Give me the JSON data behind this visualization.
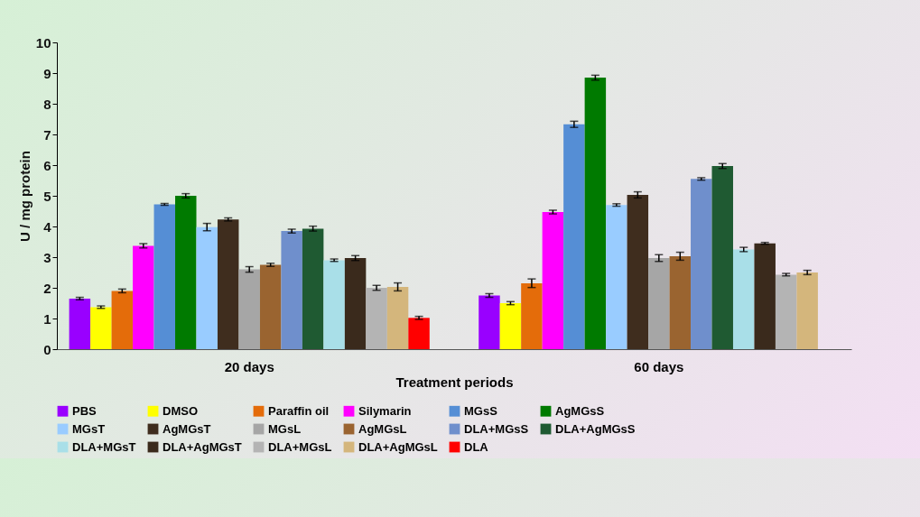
{
  "chart_data": {
    "type": "bar",
    "xlabel": "Treatment periods",
    "ylabel": "U / mg protein",
    "categories": [
      "20 days",
      "60 days"
    ],
    "ylim": [
      0,
      10
    ],
    "yticks": [
      0,
      1,
      2,
      3,
      4,
      5,
      6,
      7,
      8,
      9,
      10
    ],
    "grid": false,
    "legend": "bottom",
    "series": [
      {
        "name": "PBS",
        "color": "#9900ff",
        "values": [
          1.65,
          1.75
        ],
        "errors": [
          0.04,
          0.06
        ]
      },
      {
        "name": "DMSO",
        "color": "#ffff00",
        "values": [
          1.37,
          1.5
        ],
        "errors": [
          0.04,
          0.05
        ]
      },
      {
        "name": "Paraffin oil",
        "color": "#e46c0a",
        "values": [
          1.9,
          2.15
        ],
        "errors": [
          0.06,
          0.14
        ]
      },
      {
        "name": "Silymarin",
        "color": "#ff00ff",
        "values": [
          3.37,
          4.47
        ],
        "errors": [
          0.07,
          0.06
        ]
      },
      {
        "name": "MGsS",
        "color": "#558ed5",
        "values": [
          4.72,
          7.33
        ],
        "errors": [
          0.03,
          0.1
        ]
      },
      {
        "name": "AgMGsS",
        "color": "#007a00",
        "values": [
          5.0,
          8.85
        ],
        "errors": [
          0.07,
          0.08
        ]
      },
      {
        "name": "MGsT",
        "color": "#99ccff",
        "values": [
          3.98,
          4.7
        ],
        "errors": [
          0.12,
          0.04
        ]
      },
      {
        "name": "AgMGsT",
        "color": "#3f2d1e",
        "values": [
          4.23,
          5.03
        ],
        "errors": [
          0.05,
          0.1
        ]
      },
      {
        "name": "MGsL",
        "color": "#a6a6a6",
        "values": [
          2.6,
          2.97
        ],
        "errors": [
          0.09,
          0.11
        ]
      },
      {
        "name": "AgMGsL",
        "color": "#9a6430",
        "values": [
          2.75,
          3.03
        ],
        "errors": [
          0.05,
          0.13
        ]
      },
      {
        "name": "DLA+MGsS",
        "color": "#6f8fcc",
        "values": [
          3.85,
          5.55
        ],
        "errors": [
          0.06,
          0.04
        ]
      },
      {
        "name": "DLA+AgMGsS",
        "color": "#1f5a32",
        "values": [
          3.93,
          5.97
        ],
        "errors": [
          0.08,
          0.08
        ]
      },
      {
        "name": "DLA+MGsT",
        "color": "#a9dfe8",
        "values": [
          2.9,
          3.25
        ],
        "errors": [
          0.04,
          0.07
        ]
      },
      {
        "name": "DLA+AgMGsT",
        "color": "#3a2a1c",
        "values": [
          2.97,
          3.45
        ],
        "errors": [
          0.08,
          0.03
        ]
      },
      {
        "name": "DLA+MGsL",
        "color": "#b4b4b4",
        "values": [
          2.0,
          2.43
        ],
        "errors": [
          0.08,
          0.04
        ]
      },
      {
        "name": "DLA+AgMGsL",
        "color": "#d4b67c",
        "values": [
          2.03,
          2.5
        ],
        "errors": [
          0.13,
          0.07
        ]
      },
      {
        "name": "DLA",
        "color": "#ff0000",
        "values": [
          1.02,
          null
        ],
        "errors": [
          0.05,
          null
        ]
      }
    ]
  }
}
